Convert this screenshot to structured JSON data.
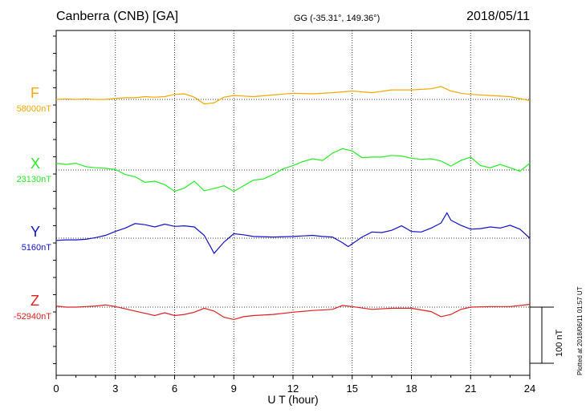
{
  "header": {
    "station": "Canberra (CNB)  [GA]",
    "coords": "GG (-35.31°, 149.36°)",
    "date": "2018/05/11"
  },
  "footer": {
    "xlabel": "U T (hour)",
    "plotted": "Plotted at 2018/06/11 01:57 UT",
    "scale": "100 nT"
  },
  "chart_data": {
    "type": "line",
    "xlabel": "U T (hour)",
    "xlim": [
      0,
      24
    ],
    "xticks": [
      0,
      3,
      6,
      9,
      12,
      15,
      18,
      21,
      24
    ],
    "grid": "dotted vertical every 3 h; dotted baseline per component",
    "scale_bar_nT": 100,
    "series": [
      {
        "name": "F",
        "baseline_label": "58000nT",
        "baseline": 58000,
        "color": "#f5a800",
        "x": [
          0,
          0.5,
          1,
          1.5,
          2,
          2.5,
          3,
          3.5,
          4,
          4.5,
          5,
          5.5,
          6,
          6.5,
          7,
          7.5,
          8,
          8.5,
          9,
          9.5,
          10,
          11,
          12,
          13,
          14,
          15,
          16,
          17,
          18,
          19,
          19.5,
          20,
          20.5,
          21,
          22,
          23,
          24
        ],
        "y": [
          58000,
          58001,
          58000,
          58001,
          58000,
          58000,
          58002,
          58003,
          58003,
          58005,
          58004,
          58005,
          58009,
          58010,
          58004,
          57992,
          57994,
          58004,
          58007,
          58006,
          58005,
          58008,
          58011,
          58010,
          58012,
          58015,
          58012,
          58017,
          58017,
          58019,
          58023,
          58015,
          58011,
          58009,
          58007,
          58005,
          57998
        ]
      },
      {
        "name": "X",
        "baseline_label": "23130nT",
        "baseline": 23130,
        "color": "#22ee22",
        "x": [
          0,
          0.5,
          1,
          1.5,
          2,
          2.5,
          3,
          3.5,
          4,
          4.5,
          5,
          5.5,
          6,
          6.5,
          7,
          7.5,
          8,
          8.5,
          9,
          9.5,
          10,
          10.5,
          11,
          11.5,
          12,
          12.5,
          13,
          13.5,
          14,
          14.5,
          15,
          15.5,
          16,
          16.5,
          17,
          17.5,
          18,
          18.5,
          19,
          19.5,
          20,
          20.5,
          21,
          21.5,
          22,
          22.5,
          23,
          23.5,
          24
        ],
        "y": [
          23142,
          23140,
          23142,
          23136,
          23134,
          23133,
          23131,
          23122,
          23118,
          23108,
          23110,
          23104,
          23092,
          23098,
          23110,
          23093,
          23097,
          23102,
          23092,
          23102,
          23112,
          23114,
          23122,
          23132,
          23138,
          23145,
          23150,
          23147,
          23160,
          23168,
          23164,
          23152,
          23153,
          23153,
          23156,
          23155,
          23151,
          23149,
          23150,
          23146,
          23137,
          23147,
          23153,
          23138,
          23134,
          23140,
          23134,
          23128,
          23142
        ]
      },
      {
        "name": "Y",
        "baseline_label": "5160nT",
        "baseline": 5160,
        "color": "#1111cc",
        "x": [
          0,
          0.5,
          1,
          1.5,
          2,
          2.5,
          3,
          3.5,
          4,
          4.5,
          5,
          5.5,
          6,
          6.5,
          7,
          7.5,
          7.8,
          8,
          8.5,
          9,
          9.5,
          10,
          11,
          12,
          12.5,
          13,
          13.5,
          14,
          14.5,
          14.8,
          15,
          15.5,
          16,
          16.5,
          17,
          17.5,
          18,
          18.5,
          19,
          19.5,
          19.8,
          20,
          20.5,
          21,
          21.5,
          22,
          22.5,
          23,
          23.5,
          24
        ],
        "y": [
          5156,
          5157,
          5157,
          5158,
          5161,
          5165,
          5172,
          5178,
          5186,
          5184,
          5180,
          5185,
          5181,
          5182,
          5180,
          5165,
          5146,
          5133,
          5153,
          5168,
          5166,
          5163,
          5162,
          5163,
          5164,
          5165,
          5163,
          5162,
          5152,
          5145,
          5150,
          5162,
          5171,
          5170,
          5174,
          5182,
          5172,
          5171,
          5178,
          5187,
          5205,
          5192,
          5183,
          5176,
          5177,
          5180,
          5178,
          5183,
          5176,
          5160
        ]
      },
      {
        "name": "Z",
        "baseline_label": "-52940nT",
        "baseline": -52940,
        "color": "#e02020",
        "x": [
          0,
          0.5,
          1,
          1.5,
          2,
          2.5,
          3,
          3.5,
          4,
          4.5,
          5,
          5.5,
          6,
          6.5,
          7,
          7.5,
          8,
          8.5,
          9,
          9.5,
          10,
          11,
          12,
          13,
          14,
          14.5,
          15,
          16,
          17,
          18,
          19,
          19.5,
          20,
          20.5,
          21,
          22,
          23,
          24
        ],
        "y": [
          -52938,
          -52940,
          -52940,
          -52939,
          -52938,
          -52936,
          -52939,
          -52943,
          -52947,
          -52951,
          -52955,
          -52950,
          -52955,
          -52953,
          -52949,
          -52942,
          -52947,
          -52958,
          -52962,
          -52957,
          -52955,
          -52953,
          -52949,
          -52946,
          -52944,
          -52937,
          -52939,
          -52944,
          -52942,
          -52942,
          -52948,
          -52957,
          -52953,
          -52944,
          -52940,
          -52939,
          -52939,
          -52935
        ]
      }
    ]
  }
}
